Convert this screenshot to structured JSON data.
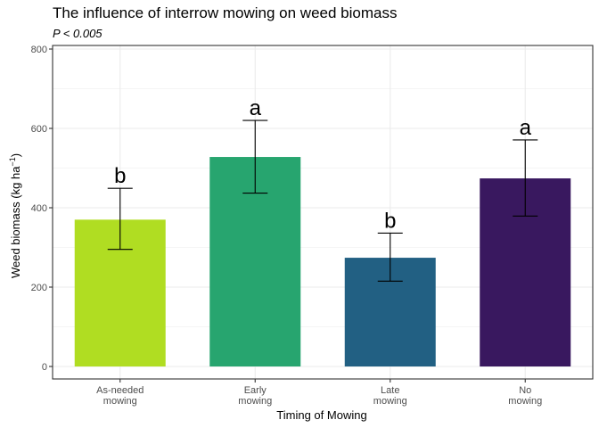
{
  "chart_data": {
    "type": "bar",
    "title": "The influence of interrow mowing on weed biomass",
    "subtitle": "P < 0.005",
    "xlabel": "Timing of Mowing",
    "ylabel": {
      "main": "Weed biomass (kg ha",
      "superscript": "−1",
      "close": ")"
    },
    "categories": [
      [
        "As-needed",
        "mowing"
      ],
      [
        "Early",
        "mowing"
      ],
      [
        "Late",
        "mowing"
      ],
      [
        "No",
        "mowing"
      ]
    ],
    "values": [
      370,
      528,
      274,
      474
    ],
    "error_low": [
      295,
      437,
      215,
      379
    ],
    "error_high": [
      449,
      620,
      336,
      571
    ],
    "significance_letters": [
      "b",
      "a",
      "b",
      "a"
    ],
    "colors": [
      "#b0dd22",
      "#27a56f",
      "#226083",
      "#39185f"
    ],
    "ylim": [
      0,
      800
    ],
    "yticks": [
      0,
      200,
      400,
      600,
      800
    ],
    "grid": true,
    "legend": "none"
  }
}
